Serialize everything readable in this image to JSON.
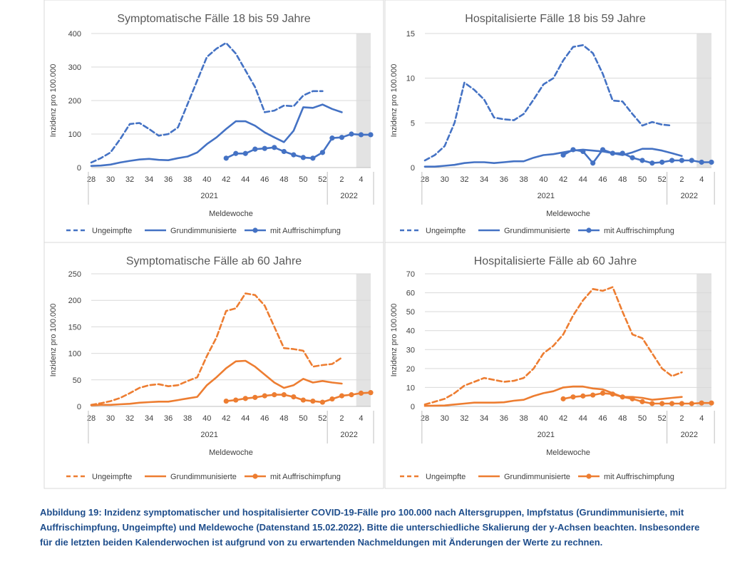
{
  "caption": "Abbildung 19: Inzidenz symptomatischer und hospitalisierter COVID-19-Fälle pro 100.000 nach Altersgruppen, Impfstatus (Grundimmunisierte, mit Auffrischimpfung, Ungeimpfte) und Meldewoche (Datenstand 15.02.2022). Bitte die unterschiedliche Skalierung der y-Achsen beachten. Insbesondere für die letzten beiden Kalenderwochen ist aufgrund von zu erwartenden Nachmeldungen mit Änderungen der Werte zu rechnen.",
  "colors": {
    "blue": "#4472C4",
    "orange": "#ED7D31",
    "grid": "#D9D9D9",
    "shade": "#E3E3E3",
    "axis": "#BFBFBF",
    "text": "#404040"
  },
  "chart_data": [
    {
      "type": "line",
      "title": "Symptomatische Fälle 18 bis 59 Jahre",
      "ylabel": "Inzidenz pro 100.000",
      "xlabel": "Meldewoche",
      "color": "blue",
      "ylim": [
        0,
        400
      ],
      "yticks": [
        "0",
        "100",
        "200",
        "300",
        "400"
      ],
      "x_ticks": [
        "28",
        "30",
        "32",
        "34",
        "36",
        "38",
        "40",
        "42",
        "44",
        "46",
        "48",
        "50",
        "52",
        "2",
        "4"
      ],
      "year_labels": [
        "2021",
        "2022"
      ],
      "shaded_weeks": [
        "4",
        "5"
      ],
      "series": [
        {
          "name": "Ungeimpfte",
          "style": "dashed",
          "start": "28",
          "values": [
            15,
            28,
            45,
            85,
            130,
            133,
            115,
            95,
            100,
            120,
            190,
            260,
            330,
            355,
            372,
            340,
            290,
            240,
            165,
            170,
            185,
            183,
            215,
            228,
            228
          ]
        },
        {
          "name": "Grundimmunisierte",
          "style": "solid",
          "start": "28",
          "values": [
            5,
            6,
            9,
            15,
            20,
            24,
            26,
            23,
            22,
            28,
            33,
            45,
            70,
            90,
            115,
            138,
            138,
            125,
            105,
            90,
            76,
            110,
            180,
            178,
            188,
            175,
            165
          ]
        },
        {
          "name": "mit Auffrischimpfung",
          "style": "markers",
          "start": "42",
          "values": [
            28,
            42,
            42,
            55,
            57,
            60,
            48,
            38,
            30,
            28,
            45,
            88,
            90,
            100,
            98,
            98
          ]
        }
      ]
    },
    {
      "type": "line",
      "title": "Hospitalisierte Fälle 18 bis 59 Jahre",
      "ylabel": "Inzidenz pro 100.000",
      "xlabel": "Meldewoche",
      "color": "blue",
      "ylim": [
        0,
        15
      ],
      "yticks": [
        "0",
        "5",
        "10",
        "15"
      ],
      "x_ticks": [
        "28",
        "30",
        "32",
        "34",
        "36",
        "38",
        "40",
        "42",
        "44",
        "46",
        "48",
        "50",
        "52",
        "2",
        "4"
      ],
      "year_labels": [
        "2021",
        "2022"
      ],
      "shaded_weeks": [
        "4",
        "5"
      ],
      "series": [
        {
          "name": "Ungeimpfte",
          "style": "dashed",
          "start": "28",
          "values": [
            0.8,
            1.4,
            2.4,
            5.0,
            9.5,
            8.7,
            7.6,
            5.6,
            5.4,
            5.3,
            6.0,
            7.6,
            9.3,
            10.0,
            12.0,
            13.5,
            13.7,
            12.8,
            10.5,
            7.5,
            7.4,
            6.0,
            4.7,
            5.1,
            4.8,
            4.7
          ]
        },
        {
          "name": "Grundimmunisierte",
          "style": "solid",
          "start": "28",
          "values": [
            0.1,
            0.1,
            0.2,
            0.3,
            0.5,
            0.6,
            0.6,
            0.5,
            0.6,
            0.7,
            0.7,
            1.1,
            1.4,
            1.5,
            1.7,
            1.9,
            2.0,
            1.9,
            1.8,
            1.6,
            1.4,
            1.7,
            2.1,
            2.1,
            1.9,
            1.6,
            1.3
          ]
        },
        {
          "name": "mit Auffrischimpfung",
          "style": "markers",
          "start": "42",
          "values": [
            1.4,
            2.0,
            1.8,
            0.5,
            2.0,
            1.6,
            1.6,
            1.1,
            0.8,
            0.5,
            0.6,
            0.8,
            0.8,
            0.8,
            0.6,
            0.6
          ]
        }
      ]
    },
    {
      "type": "line",
      "title": "Symptomatische Fälle ab 60 Jahre",
      "ylabel": "Inzidenz pro 100.000",
      "xlabel": "Meldewoche",
      "color": "orange",
      "ylim": [
        0,
        250
      ],
      "yticks": [
        "0",
        "50",
        "100",
        "150",
        "200",
        "250"
      ],
      "x_ticks": [
        "28",
        "30",
        "32",
        "34",
        "36",
        "38",
        "40",
        "42",
        "44",
        "46",
        "48",
        "50",
        "52",
        "2",
        "4"
      ],
      "year_labels": [
        "2021",
        "2022"
      ],
      "shaded_weeks": [
        "4",
        "5"
      ],
      "series": [
        {
          "name": "Ungeimpfte",
          "style": "dashed",
          "start": "28",
          "values": [
            3,
            6,
            10,
            16,
            25,
            35,
            40,
            42,
            38,
            40,
            48,
            55,
            95,
            130,
            180,
            185,
            213,
            210,
            190,
            150,
            110,
            108,
            105,
            75,
            78,
            80,
            92
          ]
        },
        {
          "name": "Grundimmunisierte",
          "style": "solid",
          "start": "28",
          "values": [
            2,
            3,
            3,
            4,
            5,
            7,
            8,
            9,
            9,
            12,
            15,
            18,
            40,
            55,
            72,
            85,
            86,
            75,
            60,
            45,
            35,
            40,
            52,
            45,
            48,
            45,
            43
          ]
        },
        {
          "name": "mit Auffrischimpfung",
          "style": "markers",
          "start": "42",
          "values": [
            10,
            12,
            15,
            17,
            20,
            22,
            22,
            18,
            12,
            10,
            8,
            14,
            20,
            22,
            25,
            26
          ]
        }
      ]
    },
    {
      "type": "line",
      "title": "Hospitalisierte Fälle ab 60 Jahre",
      "ylabel": "Inzidenz pro 100.000",
      "xlabel": "Meldewoche",
      "color": "orange",
      "ylim": [
        0,
        70
      ],
      "yticks": [
        "0",
        "10",
        "20",
        "30",
        "40",
        "50",
        "60",
        "70"
      ],
      "x_ticks": [
        "28",
        "30",
        "32",
        "34",
        "36",
        "38",
        "40",
        "42",
        "44",
        "46",
        "48",
        "50",
        "52",
        "2",
        "4"
      ],
      "year_labels": [
        "2021",
        "2022"
      ],
      "shaded_weeks": [
        "4",
        "5"
      ],
      "series": [
        {
          "name": "Ungeimpfte",
          "style": "dashed",
          "start": "28",
          "values": [
            1,
            2.5,
            4,
            7,
            11,
            13,
            15,
            14,
            13,
            13.5,
            15,
            20,
            28,
            32,
            38,
            48,
            56,
            62,
            61,
            63,
            50,
            38,
            36,
            28,
            20,
            16,
            18
          ]
        },
        {
          "name": "Grundimmunisierte",
          "style": "solid",
          "start": "28",
          "values": [
            0.3,
            0.4,
            0.5,
            1,
            1.5,
            2,
            2,
            2,
            2.2,
            3,
            3.5,
            5.5,
            7,
            8,
            10,
            10.5,
            10.5,
            9.5,
            9,
            7,
            5,
            5,
            4.5,
            3.5,
            4,
            4.5,
            5
          ]
        },
        {
          "name": "mit Auffrischimpfung",
          "style": "markers",
          "start": "42",
          "values": [
            4,
            5,
            5.5,
            6,
            7,
            6.5,
            5,
            4,
            2.5,
            1.5,
            1.5,
            1.5,
            1.5,
            1.5,
            1.8,
            1.8
          ]
        }
      ]
    }
  ]
}
